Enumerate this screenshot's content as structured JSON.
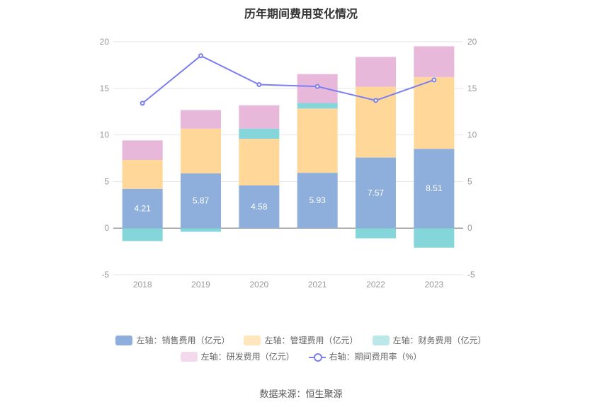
{
  "chart_data": {
    "type": "bar",
    "title": "历年期间费用变化情况",
    "categories": [
      "2018",
      "2019",
      "2020",
      "2021",
      "2022",
      "2023"
    ],
    "stacked": true,
    "series": [
      {
        "name": "左轴：销售费用（亿元）",
        "axis": "left",
        "type": "bar",
        "color": "#8eaedc",
        "values": [
          4.21,
          5.87,
          4.58,
          5.93,
          7.57,
          8.51
        ],
        "labels": [
          "4.21",
          "5.87",
          "4.58",
          "5.93",
          "7.57",
          "8.51"
        ]
      },
      {
        "name": "左轴：管理费用（亿元）",
        "axis": "left",
        "type": "bar",
        "color": "#ffd899",
        "values": [
          3.1,
          4.8,
          5.0,
          6.9,
          7.6,
          7.7
        ]
      },
      {
        "name": "左轴：财务费用（亿元）",
        "axis": "left",
        "type": "bar",
        "color": "#85d6da",
        "values": [
          -1.4,
          -0.4,
          1.1,
          0.6,
          -1.1,
          -2.1
        ]
      },
      {
        "name": "左轴：研发费用（亿元）",
        "axis": "left",
        "type": "bar",
        "color": "#e8b8da",
        "values": [
          2.1,
          2.0,
          2.5,
          3.1,
          3.2,
          3.3
        ]
      },
      {
        "name": "右轴：期间费用率（%）",
        "axis": "right",
        "type": "line",
        "color": "#7b7ff0",
        "values": [
          13.4,
          18.5,
          15.4,
          15.2,
          13.7,
          15.9
        ]
      }
    ],
    "yleft": {
      "min": -5,
      "max": 20,
      "ticks": [
        "-5",
        "0",
        "5",
        "10",
        "15",
        "20"
      ]
    },
    "yright": {
      "min": -5,
      "max": 20,
      "ticks": [
        "-5",
        "0",
        "5",
        "10",
        "15",
        "20"
      ]
    },
    "legend_position": "bottom",
    "source": "数据来源：恒生聚源"
  },
  "legend": {
    "row1": [
      {
        "label": "左轴：销售费用（亿元）",
        "color": "#8eaedc"
      },
      {
        "label": "左轴：管理费用（亿元）",
        "color": "#ffe6bd"
      },
      {
        "label": "左轴：财务费用（亿元）",
        "color": "#bde8ea"
      }
    ],
    "row2": [
      {
        "label": "左轴：研发费用（亿元）",
        "color": "#f3d9ec"
      },
      {
        "label": "右轴：期间费用率（%）",
        "color": "#7b7ff0"
      }
    ]
  }
}
